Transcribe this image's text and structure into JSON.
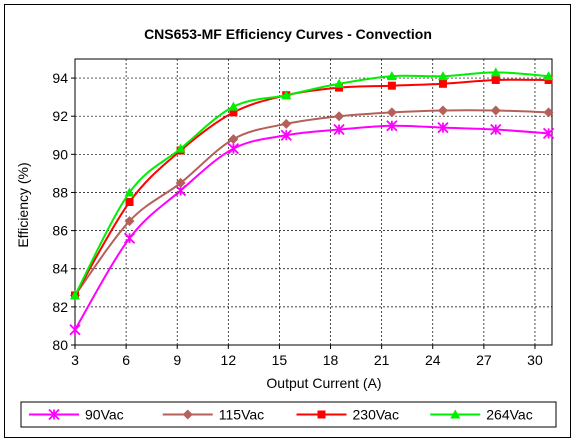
{
  "chart_data": {
    "type": "line",
    "title": "CNS653-MF Efficiency Curves - Convection",
    "xlabel": "Output Current (A)",
    "ylabel": "Efficiency (%)",
    "xlim": [
      3,
      31
    ],
    "ylim": [
      80,
      95
    ],
    "xticks": [
      3,
      6,
      9,
      12,
      15,
      18,
      21,
      24,
      27,
      30
    ],
    "yticks": [
      80,
      82,
      84,
      86,
      88,
      90,
      92,
      94
    ],
    "grid": true,
    "legend": "bottom",
    "series": [
      {
        "name": "90Vac",
        "color": "#ff00ff",
        "marker": "x",
        "x": [
          3,
          6.2,
          9.2,
          12.3,
          15.4,
          18.5,
          21.6,
          24.6,
          27.7,
          30.8
        ],
        "y": [
          80.8,
          85.6,
          88.1,
          90.3,
          91.0,
          91.3,
          91.5,
          91.4,
          91.3,
          91.1
        ]
      },
      {
        "name": "115Vac",
        "color": "#b5605a",
        "marker": "diamond",
        "x": [
          3,
          6.2,
          9.2,
          12.3,
          15.4,
          18.5,
          21.6,
          24.6,
          27.7,
          30.8
        ],
        "y": [
          82.6,
          86.5,
          88.5,
          90.8,
          91.6,
          92.0,
          92.2,
          92.3,
          92.3,
          92.2
        ]
      },
      {
        "name": "230Vac",
        "color": "#ff0000",
        "marker": "square",
        "x": [
          3,
          6.2,
          9.2,
          12.3,
          15.4,
          18.5,
          21.6,
          24.6,
          27.7,
          30.8
        ],
        "y": [
          82.6,
          87.5,
          90.2,
          92.2,
          93.1,
          93.5,
          93.6,
          93.7,
          93.9,
          93.9
        ]
      },
      {
        "name": "264Vac",
        "color": "#00ee00",
        "marker": "triangle",
        "x": [
          3,
          6.2,
          9.2,
          12.3,
          15.4,
          18.5,
          21.6,
          24.6,
          27.7,
          30.8
        ],
        "y": [
          82.6,
          88.0,
          90.3,
          92.5,
          93.1,
          93.7,
          94.1,
          94.1,
          94.3,
          94.1
        ]
      }
    ]
  }
}
